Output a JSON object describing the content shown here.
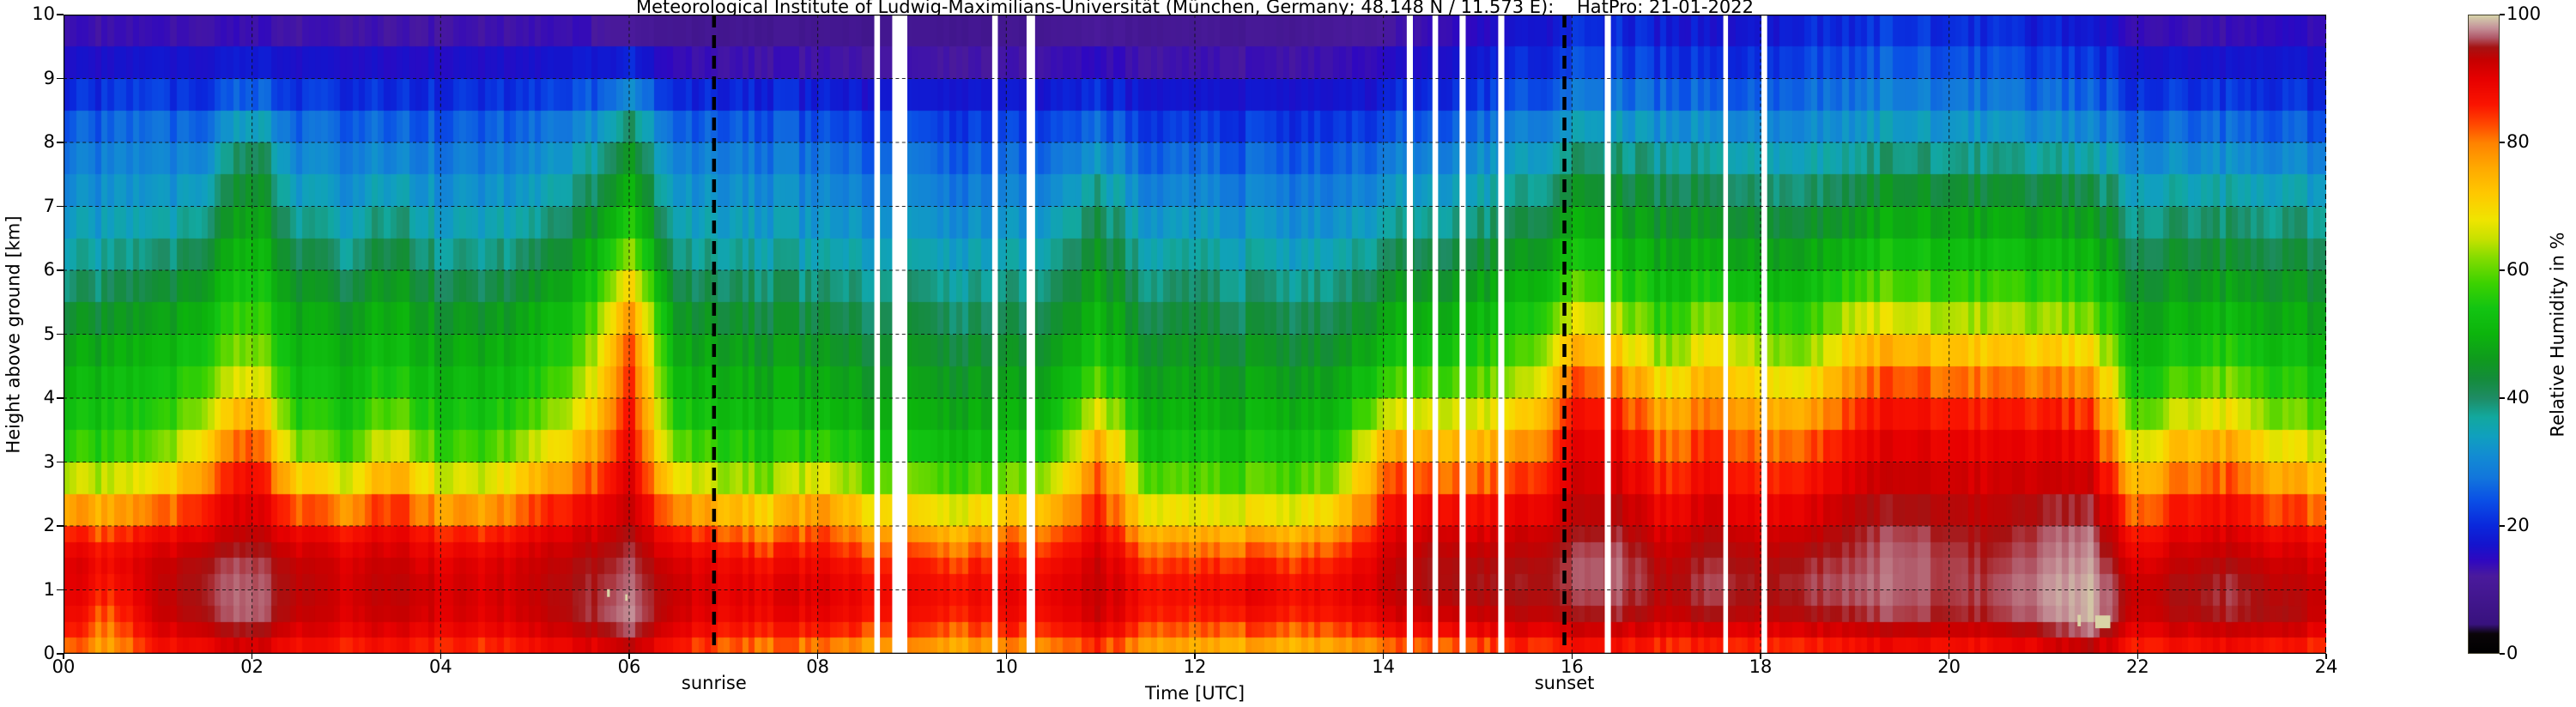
{
  "figure": {
    "title": "Meteorological Institute of Ludwig-Maximilians-Universität (München, Germany; 48.148 N / 11.573 E):    HatPro: 21-01-2022",
    "background": "#ffffff"
  },
  "axes": {
    "xlabel": "Time [UTC]",
    "ylabel": "Height above ground [km]",
    "x_tick_hours": [
      0,
      2,
      4,
      6,
      8,
      10,
      12,
      14,
      16,
      18,
      20,
      22,
      24
    ],
    "x_tick_labels": [
      "00",
      "02",
      "04",
      "06",
      "08",
      "10",
      "12",
      "14",
      "16",
      "18",
      "20",
      "22",
      "24"
    ],
    "y_tick_km": [
      0,
      1,
      2,
      3,
      4,
      5,
      6,
      7,
      8,
      9,
      10
    ],
    "y_tick_labels": [
      "0",
      "1",
      "2",
      "3",
      "4",
      "5",
      "6",
      "7",
      "8",
      "9",
      "10"
    ],
    "x_range_hours": [
      0,
      24
    ],
    "y_range_km": [
      0,
      10
    ],
    "grid": "dashed black, vertical every 2 h, horizontal every 1 km"
  },
  "annotations": {
    "sunrise": {
      "label": "sunrise",
      "hour": 6.9
    },
    "sunset": {
      "label": "sunset",
      "hour": 15.92
    }
  },
  "colorbar": {
    "label": "Relative Humidity in %",
    "tick_values": [
      0,
      20,
      40,
      60,
      80,
      100
    ],
    "tick_labels": [
      "0",
      "20",
      "40",
      "60",
      "80",
      "100"
    ],
    "stops": [
      [
        0,
        "#000000"
      ],
      [
        3,
        "#0a0508"
      ],
      [
        4.5,
        "#38127e"
      ],
      [
        12,
        "#4a1a9c"
      ],
      [
        14.5,
        "#2f08c0"
      ],
      [
        17,
        "#1414cd"
      ],
      [
        20,
        "#0a28dc"
      ],
      [
        24,
        "#0a50e6"
      ],
      [
        27.5,
        "#1276dc"
      ],
      [
        31,
        "#128cd2"
      ],
      [
        34,
        "#10a0be"
      ],
      [
        37,
        "#12a89e"
      ],
      [
        40,
        "#1e8c64"
      ],
      [
        43,
        "#148c3a"
      ],
      [
        46,
        "#0f9a1e"
      ],
      [
        50,
        "#0cb40c"
      ],
      [
        54,
        "#12c412"
      ],
      [
        58,
        "#3cd200"
      ],
      [
        62,
        "#84dc00"
      ],
      [
        65,
        "#c8e100"
      ],
      [
        68,
        "#f0e400"
      ],
      [
        72,
        "#ffc800"
      ],
      [
        76,
        "#ffaa00"
      ],
      [
        80,
        "#ff8200"
      ],
      [
        83,
        "#ff4600"
      ],
      [
        86,
        "#fa1400"
      ],
      [
        90,
        "#e60000"
      ],
      [
        93,
        "#c60000"
      ],
      [
        95,
        "#a51212"
      ],
      [
        96.5,
        "#b05868"
      ],
      [
        98,
        "#c49098"
      ],
      [
        99,
        "#ccb2a4"
      ],
      [
        100,
        "#d6d2a8"
      ]
    ]
  },
  "chart_data": {
    "type": "heatmap",
    "title": "Meteorological Institute of Ludwig-Maximilians-Universität (München, Germany; 48.148 N / 11.573 E):    HatPro: 21-01-2022",
    "xlabel": "Time [UTC]",
    "ylabel": "Height above ground [km]",
    "unit": "relative humidity %",
    "t_start_hours": 0,
    "t_step_hours": 0.5,
    "h_start_km": 0,
    "h_step_km": 0.5,
    "xlim": [
      0,
      24
    ],
    "ylim": [
      0,
      10
    ],
    "zlim": [
      0,
      100
    ],
    "columns_rh_ground_to_10km": [
      [
        82,
        90,
        92,
        92,
        85,
        72,
        60,
        55,
        52,
        50,
        47,
        43,
        38,
        36,
        33,
        30,
        28,
        24,
        18,
        15,
        13
      ],
      [
        75,
        80,
        85,
        88,
        80,
        70,
        58,
        54,
        52,
        50,
        46,
        42,
        38,
        35,
        32,
        30,
        27,
        23,
        18,
        14,
        12
      ],
      [
        85,
        92,
        93,
        92,
        86,
        74,
        62,
        56,
        53,
        51,
        48,
        44,
        40,
        36,
        33,
        30,
        28,
        24,
        19,
        15,
        12
      ],
      [
        88,
        95,
        96,
        95,
        90,
        84,
        76,
        68,
        62,
        58,
        54,
        50,
        46,
        42,
        38,
        34,
        30,
        25,
        19,
        15,
        12
      ],
      [
        90,
        97,
        97,
        96,
        93,
        90,
        87,
        80,
        72,
        64,
        60,
        56,
        53,
        50,
        47,
        44,
        40,
        30,
        21,
        15,
        12
      ],
      [
        86,
        93,
        94,
        93,
        88,
        78,
        66,
        58,
        54,
        52,
        50,
        47,
        44,
        40,
        36,
        32,
        29,
        24,
        19,
        14,
        12
      ],
      [
        84,
        91,
        92,
        91,
        85,
        72,
        60,
        55,
        52,
        50,
        48,
        44,
        40,
        36,
        33,
        30,
        28,
        23,
        18,
        14,
        12
      ],
      [
        86,
        93,
        94,
        93,
        89,
        82,
        72,
        64,
        58,
        54,
        52,
        49,
        46,
        42,
        38,
        33,
        29,
        24,
        18,
        14,
        12
      ],
      [
        84,
        91,
        92,
        90,
        84,
        72,
        60,
        55,
        52,
        50,
        47,
        44,
        40,
        36,
        33,
        30,
        27,
        23,
        18,
        14,
        12
      ],
      [
        83,
        90,
        91,
        90,
        83,
        71,
        60,
        55,
        52,
        50,
        47,
        43,
        39,
        36,
        33,
        30,
        27,
        23,
        18,
        14,
        12
      ],
      [
        85,
        92,
        93,
        92,
        87,
        78,
        68,
        60,
        55,
        52,
        50,
        46,
        42,
        38,
        34,
        31,
        28,
        23,
        18,
        14,
        12
      ],
      [
        88,
        95,
        95,
        94,
        90,
        84,
        76,
        70,
        64,
        60,
        56,
        52,
        48,
        44,
        40,
        36,
        32,
        26,
        20,
        15,
        12
      ],
      [
        92,
        98,
        97,
        96,
        94,
        92,
        90,
        88,
        86,
        84,
        82,
        74,
        66,
        58,
        52,
        47,
        43,
        36,
        24,
        13,
        9
      ],
      [
        85,
        92,
        93,
        91,
        85,
        74,
        63,
        57,
        53,
        50,
        47,
        44,
        40,
        37,
        34,
        31,
        28,
        23,
        17,
        11,
        8
      ],
      [
        80,
        88,
        90,
        88,
        80,
        68,
        58,
        53,
        50,
        48,
        45,
        42,
        38,
        35,
        32,
        30,
        27,
        22,
        16,
        10,
        8
      ],
      [
        78,
        88,
        90,
        86,
        76,
        66,
        56,
        52,
        49,
        47,
        44,
        41,
        38,
        34,
        32,
        29,
        26,
        22,
        16,
        10,
        8
      ],
      [
        78,
        89,
        91,
        88,
        82,
        74,
        60,
        53,
        49,
        47,
        44,
        41,
        37,
        34,
        31,
        29,
        26,
        21,
        16,
        10,
        8
      ],
      [
        76,
        87,
        89,
        85,
        76,
        66,
        56,
        51,
        48,
        46,
        43,
        40,
        37,
        34,
        31,
        28,
        25,
        21,
        15,
        10,
        8
      ],
      [
        75,
        86,
        88,
        84,
        74,
        64,
        55,
        50,
        47,
        45,
        43,
        40,
        36,
        33,
        30,
        28,
        25,
        20,
        15,
        10,
        8
      ],
      [
        74,
        85,
        88,
        83,
        72,
        62,
        54,
        50,
        47,
        45,
        42,
        39,
        36,
        33,
        30,
        27,
        24,
        20,
        15,
        10,
        8
      ],
      [
        76,
        87,
        89,
        85,
        78,
        64,
        55,
        50,
        47,
        45,
        42,
        39,
        36,
        33,
        30,
        27,
        24,
        20,
        15,
        10,
        8
      ],
      [
        78,
        88,
        90,
        87,
        80,
        70,
        60,
        54,
        50,
        48,
        45,
        42,
        39,
        36,
        33,
        29,
        26,
        21,
        16,
        11,
        9
      ],
      [
        82,
        92,
        93,
        92,
        88,
        84,
        80,
        72,
        62,
        56,
        52,
        49,
        46,
        43,
        40,
        35,
        29,
        23,
        17,
        12,
        10
      ],
      [
        76,
        86,
        88,
        84,
        74,
        64,
        56,
        52,
        49,
        47,
        44,
        41,
        38,
        35,
        32,
        28,
        25,
        20,
        15,
        11,
        9
      ],
      [
        72,
        84,
        87,
        82,
        72,
        62,
        55,
        51,
        48,
        46,
        44,
        41,
        38,
        35,
        31,
        28,
        24,
        19,
        15,
        11,
        9
      ],
      [
        73,
        86,
        90,
        84,
        73,
        62,
        55,
        51,
        48,
        46,
        43,
        40,
        37,
        34,
        31,
        27,
        24,
        19,
        15,
        11,
        9
      ],
      [
        72,
        85,
        88,
        83,
        72,
        62,
        55,
        51,
        48,
        45,
        43,
        40,
        36,
        33,
        30,
        27,
        23,
        19,
        15,
        11,
        9
      ],
      [
        74,
        86,
        89,
        85,
        76,
        66,
        57,
        52,
        49,
        46,
        43,
        40,
        37,
        34,
        30,
        27,
        24,
        19,
        15,
        12,
        10
      ],
      [
        78,
        90,
        93,
        92,
        88,
        84,
        80,
        70,
        60,
        54,
        50,
        46,
        42,
        38,
        34,
        30,
        26,
        21,
        17,
        13,
        11
      ],
      [
        80,
        92,
        95,
        95,
        92,
        86,
        80,
        72,
        62,
        56,
        52,
        48,
        44,
        40,
        36,
        32,
        28,
        23,
        18,
        15,
        13
      ],
      [
        80,
        92,
        95,
        94,
        90,
        84,
        78,
        70,
        62,
        57,
        53,
        49,
        45,
        41,
        37,
        33,
        29,
        24,
        19,
        16,
        14
      ],
      [
        82,
        93,
        95,
        94,
        91,
        86,
        80,
        74,
        66,
        60,
        55,
        51,
        47,
        43,
        39,
        35,
        31,
        26,
        21,
        18,
        16
      ],
      [
        84,
        94,
        96,
        96,
        94,
        92,
        90,
        88,
        85,
        78,
        70,
        62,
        55,
        50,
        46,
        41,
        36,
        30,
        24,
        21,
        18
      ],
      [
        85,
        95,
        97,
        97,
        95,
        93,
        90,
        88,
        84,
        76,
        68,
        60,
        54,
        50,
        46,
        42,
        37,
        31,
        25,
        22,
        19
      ],
      [
        82,
        92,
        94,
        93,
        90,
        86,
        82,
        78,
        72,
        64,
        58,
        53,
        49,
        46,
        43,
        39,
        34,
        28,
        23,
        19,
        17
      ],
      [
        84,
        95,
        97,
        96,
        94,
        91,
        88,
        85,
        80,
        74,
        68,
        60,
        53,
        49,
        45,
        41,
        36,
        30,
        24,
        20,
        17
      ],
      [
        83,
        93,
        95,
        94,
        91,
        87,
        83,
        79,
        73,
        66,
        60,
        54,
        49,
        46,
        42,
        38,
        33,
        28,
        23,
        19,
        16
      ],
      [
        82,
        94,
        96,
        95,
        92,
        88,
        84,
        79,
        72,
        64,
        58,
        53,
        49,
        45,
        41,
        37,
        32,
        28,
        24,
        21,
        18
      ],
      [
        85,
        95,
        97,
        96,
        95,
        93,
        90,
        87,
        83,
        77,
        70,
        62,
        54,
        49,
        45,
        40,
        35,
        30,
        26,
        22,
        19
      ],
      [
        86,
        96,
        97,
        97,
        96,
        94,
        92,
        89,
        86,
        80,
        70,
        62,
        56,
        51,
        47,
        42,
        36,
        31,
        27,
        23,
        20
      ],
      [
        85,
        95,
        96,
        96,
        95,
        93,
        91,
        88,
        84,
        78,
        68,
        60,
        54,
        50,
        46,
        41,
        35,
        30,
        26,
        22,
        19
      ],
      [
        85,
        95,
        96,
        95,
        94,
        92,
        90,
        87,
        83,
        76,
        66,
        59,
        54,
        50,
        45,
        40,
        34,
        29,
        25,
        21,
        18
      ],
      [
        88,
        97,
        98,
        97,
        96,
        94,
        91,
        88,
        83,
        76,
        66,
        59,
        53,
        49,
        45,
        40,
        33,
        28,
        24,
        20,
        17
      ],
      [
        92,
        99,
        99,
        98,
        97,
        94,
        90,
        86,
        81,
        74,
        64,
        57,
        52,
        48,
        44,
        39,
        32,
        27,
        23,
        19,
        16
      ],
      [
        84,
        92,
        93,
        90,
        85,
        78,
        70,
        62,
        56,
        52,
        49,
        46,
        43,
        40,
        37,
        33,
        29,
        24,
        19,
        15,
        13
      ],
      [
        85,
        94,
        95,
        93,
        89,
        84,
        78,
        70,
        62,
        56,
        52,
        48,
        45,
        42,
        38,
        34,
        29,
        24,
        19,
        15,
        12
      ],
      [
        86,
        95,
        96,
        94,
        90,
        85,
        80,
        72,
        64,
        58,
        53,
        49,
        45,
        42,
        38,
        34,
        29,
        24,
        19,
        15,
        12
      ],
      [
        84,
        95,
        94,
        92,
        87,
        80,
        72,
        64,
        58,
        54,
        50,
        47,
        44,
        41,
        37,
        33,
        28,
        23,
        19,
        16,
        14
      ],
      [
        83,
        92,
        93,
        91,
        86,
        78,
        70,
        62,
        56,
        52,
        49,
        46,
        43,
        40,
        36,
        32,
        27,
        22,
        18,
        15,
        13
      ]
    ],
    "missing_data_hours": [
      {
        "t": 8.63,
        "w": 0.06
      },
      {
        "t": 8.87,
        "w": 0.16
      },
      {
        "t": 9.88,
        "w": 0.06
      },
      {
        "t": 10.26,
        "w": 0.09
      },
      {
        "t": 14.28,
        "w": 0.065
      },
      {
        "t": 14.55,
        "w": 0.06
      },
      {
        "t": 14.84,
        "w": 0.065
      },
      {
        "t": 15.25,
        "w": 0.065
      },
      {
        "t": 16.38,
        "w": 0.065
      },
      {
        "t": 17.63,
        "w": 0.05
      },
      {
        "t": 18.04,
        "w": 0.06
      }
    ],
    "saturation_marks": [
      {
        "t": 5.78,
        "h": 0.95,
        "w": 0.03,
        "hkm": 0.12
      },
      {
        "t": 5.97,
        "h": 0.88,
        "w": 0.025,
        "hkm": 0.1
      },
      {
        "t": 21.38,
        "h": 0.52,
        "w": 0.035,
        "hkm": 0.18
      },
      {
        "t": 21.63,
        "h": 0.5,
        "w": 0.16,
        "hkm": 0.2
      }
    ],
    "legend_position": "colorbar right",
    "mark_color": "#d9d3a6"
  }
}
